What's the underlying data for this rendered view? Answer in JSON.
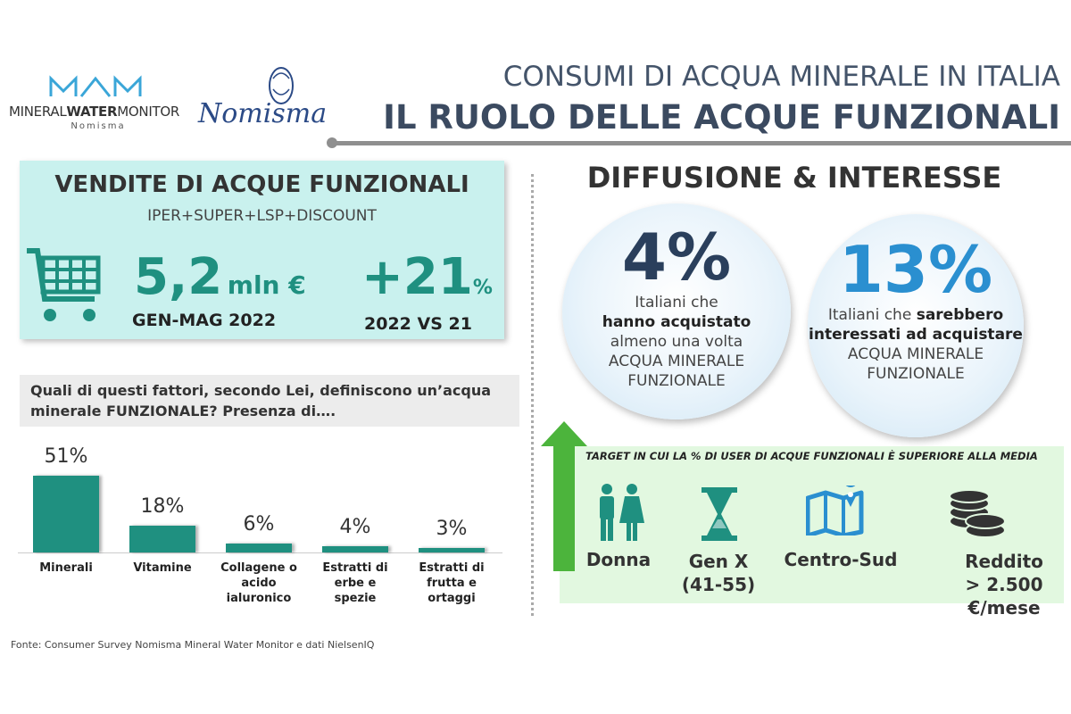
{
  "header": {
    "logo_text": "MINERAL",
    "logo_text_bold": "WATER",
    "logo_text_end": "MONITOR",
    "logo_sub": "Nomisma",
    "brand": "Nomisma",
    "title": "CONSUMI DI ACQUA MINERALE IN ITALIA",
    "subtitle": "IL RUOLO DELLE ACQUE FUNZIONALI"
  },
  "sales": {
    "title": "VENDITE DI ACQUE FUNZIONALI",
    "channels": "IPER+SUPER+LSP+DISCOUNT",
    "value": "5,2",
    "unit": "mln €",
    "period": "GEN-MAG 2022",
    "growth": "+21",
    "growth_unit": "%",
    "comparison": "2022 VS 21"
  },
  "chart_data": {
    "type": "bar",
    "title": "Quali di questi fattori, secondo Lei, definiscono un’acqua minerale FUNZIONALE? Presenza di….",
    "categories": [
      "Minerali",
      "Vitamine",
      "Collagene o acido ialuronico",
      "Estratti di erbe e spezie",
      "Estratti di frutta e ortaggi"
    ],
    "values": [
      51,
      18,
      6,
      4,
      3
    ],
    "value_labels": [
      "51%",
      "18%",
      "6%",
      "4%",
      "3%"
    ],
    "color": "#1f9080"
  },
  "diffusion": {
    "title": "DIFFUSIONE & INTERESSE",
    "circles": [
      {
        "value": "4%",
        "lines": [
          "Italiani che",
          "hanno acquistato",
          "almeno una volta",
          "ACQUA MINERALE",
          "FUNZIONALE"
        ]
      },
      {
        "value": "13%",
        "lines": [
          "Italiani che",
          "sarebbero",
          "interessati ad acquistare",
          "ACQUA MINERALE",
          "FUNZIONALE"
        ]
      }
    ]
  },
  "target": {
    "title": "TARGET IN CUI LA % DI USER DI ACQUE FUNZIONALI È SUPERIORE ALLA MEDIA",
    "items": [
      {
        "label": "Donna"
      },
      {
        "label": "Gen X",
        "detail": "(41-55)"
      },
      {
        "label": "Centro-Sud"
      },
      {
        "label": "Reddito",
        "detail": "> 2.500 €/mese"
      }
    ]
  },
  "source": "Fonte: Consumer Survey Nomisma Mineral Water Monitor e dati NielsenIQ"
}
